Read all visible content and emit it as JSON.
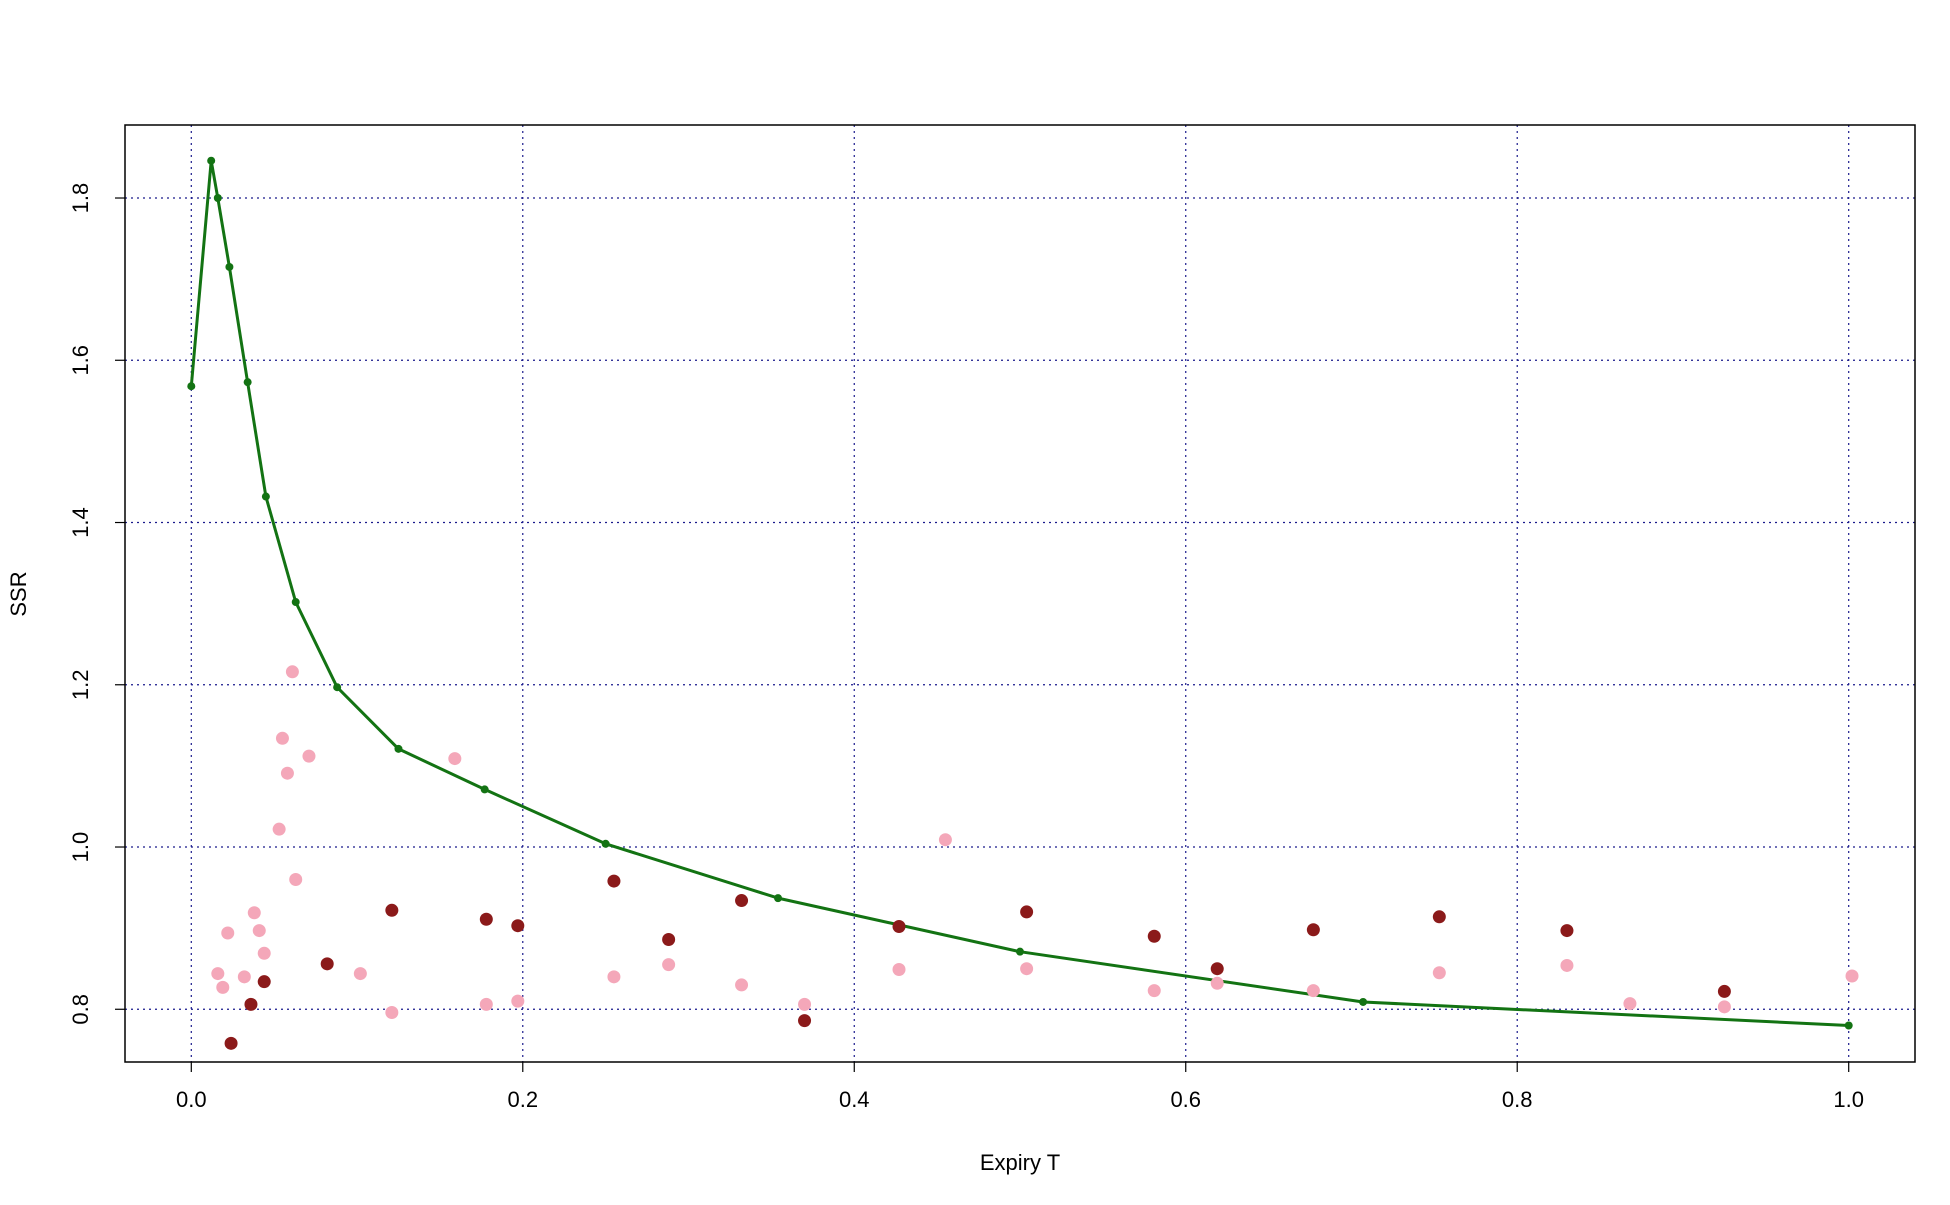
{
  "chart_data": {
    "type": "scatter",
    "title": "",
    "xlabel": "Expiry T",
    "ylabel": "SSR",
    "xlim": [
      -0.04,
      1.04
    ],
    "ylim": [
      0.735,
      1.89
    ],
    "x_ticks": [
      0.0,
      0.2,
      0.4,
      0.6,
      0.8,
      1.0
    ],
    "x_tick_labels": [
      "0.0",
      "0.2",
      "0.4",
      "0.6",
      "0.8",
      "1.0"
    ],
    "y_ticks": [
      0.8,
      1.0,
      1.2,
      1.4,
      1.6,
      1.8
    ],
    "y_tick_labels": [
      "0.8",
      "1.0",
      "1.2",
      "1.4",
      "1.6",
      "1.8"
    ],
    "grid": true,
    "grid_color": "#1a1a8c",
    "colors": {
      "curve": "#137313",
      "dark_points": "#8b1a1a",
      "light_points": "#f4a7b9"
    },
    "series": [
      {
        "kind": "scatter-dark",
        "points": [
          [
            0.024,
            0.758
          ],
          [
            0.036,
            0.806
          ],
          [
            0.044,
            0.834
          ],
          [
            0.082,
            0.856
          ],
          [
            0.121,
            0.922
          ],
          [
            0.178,
            0.911
          ],
          [
            0.197,
            0.903
          ],
          [
            0.255,
            0.958
          ],
          [
            0.288,
            0.886
          ],
          [
            0.332,
            0.934
          ],
          [
            0.37,
            0.786
          ],
          [
            0.427,
            0.902
          ],
          [
            0.504,
            0.92
          ],
          [
            0.581,
            0.89
          ],
          [
            0.619,
            0.85
          ],
          [
            0.677,
            0.898
          ],
          [
            0.753,
            0.914
          ],
          [
            0.83,
            0.897
          ],
          [
            0.925,
            0.822
          ]
        ]
      },
      {
        "kind": "scatter-light",
        "points": [
          [
            0.016,
            0.844
          ],
          [
            0.019,
            0.827
          ],
          [
            0.022,
            0.894
          ],
          [
            0.032,
            0.84
          ],
          [
            0.038,
            0.919
          ],
          [
            0.041,
            0.897
          ],
          [
            0.044,
            0.869
          ],
          [
            0.053,
            1.022
          ],
          [
            0.055,
            1.134
          ],
          [
            0.058,
            1.091
          ],
          [
            0.061,
            1.216
          ],
          [
            0.063,
            0.96
          ],
          [
            0.071,
            1.112
          ],
          [
            0.102,
            0.844
          ],
          [
            0.121,
            0.796
          ],
          [
            0.159,
            1.109
          ],
          [
            0.178,
            0.806
          ],
          [
            0.197,
            0.81
          ],
          [
            0.255,
            0.84
          ],
          [
            0.288,
            0.855
          ],
          [
            0.332,
            0.83
          ],
          [
            0.37,
            0.806
          ],
          [
            0.427,
            0.849
          ],
          [
            0.455,
            1.009
          ],
          [
            0.504,
            0.85
          ],
          [
            0.581,
            0.823
          ],
          [
            0.619,
            0.832
          ],
          [
            0.677,
            0.823
          ],
          [
            0.753,
            0.845
          ],
          [
            0.83,
            0.854
          ],
          [
            0.868,
            0.807
          ],
          [
            0.925,
            0.803
          ],
          [
            1.002,
            0.841
          ]
        ]
      },
      {
        "kind": "curve",
        "points": [
          [
            0.0,
            1.568
          ],
          [
            0.012,
            1.846
          ],
          [
            0.016,
            1.8
          ],
          [
            0.023,
            1.715
          ],
          [
            0.034,
            1.573
          ],
          [
            0.045,
            1.432
          ],
          [
            0.063,
            1.302
          ],
          [
            0.088,
            1.197
          ],
          [
            0.125,
            1.121
          ],
          [
            0.177,
            1.071
          ],
          [
            0.25,
            1.004
          ],
          [
            0.354,
            0.937
          ],
          [
            0.5,
            0.871
          ],
          [
            0.707,
            0.809
          ],
          [
            1.0,
            0.78
          ]
        ],
        "markers": [
          [
            0.0,
            1.568
          ],
          [
            0.012,
            1.846
          ],
          [
            0.016,
            1.8
          ],
          [
            0.023,
            1.715
          ],
          [
            0.034,
            1.573
          ],
          [
            0.045,
            1.432
          ],
          [
            0.063,
            1.302
          ],
          [
            0.088,
            1.197
          ],
          [
            0.125,
            1.121
          ],
          [
            0.177,
            1.071
          ],
          [
            0.25,
            1.004
          ],
          [
            0.354,
            0.937
          ],
          [
            0.5,
            0.871
          ],
          [
            0.707,
            0.809
          ],
          [
            1.0,
            0.78
          ]
        ]
      }
    ]
  }
}
